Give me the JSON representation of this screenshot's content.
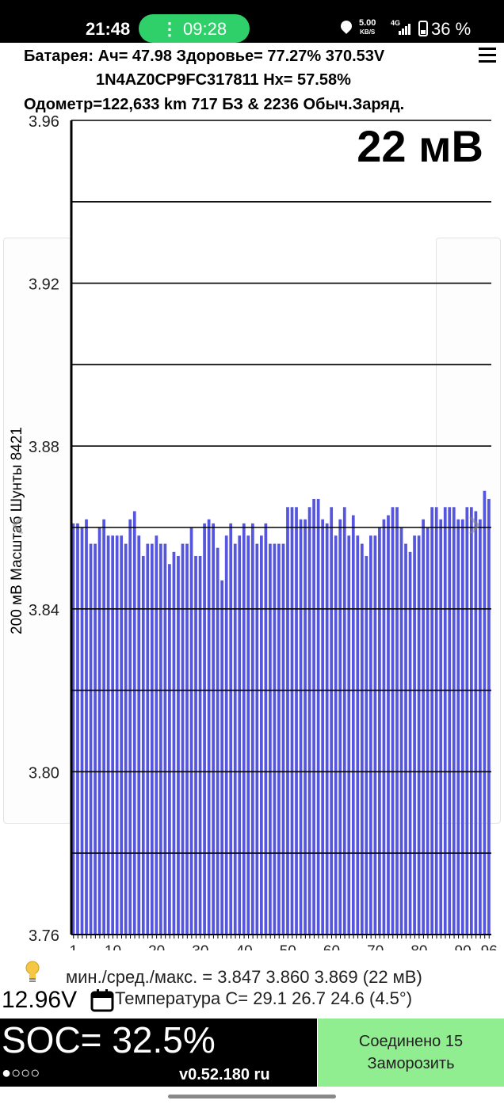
{
  "status_bar": {
    "time": "21:48",
    "call_timer": "09:28",
    "call_dot": "⋮",
    "speed_value": "5.00",
    "speed_unit": "KB/S",
    "network": "4G",
    "battery": "36 %",
    "icons": [
      "location-icon",
      "signal-icon",
      "battery-icon"
    ]
  },
  "header": {
    "line1": "Батарея: Ач= 47.98 Здоровье= 77.27% 370.53V",
    "line2": "1N4AZ0CP9FC317811   Нх= 57.58%",
    "line3": "Одометр=122,633 km 717 БЗ & 2236 Обыч.Заряд.",
    "menu_icon": "hamburger-menu-icon"
  },
  "spread_label": "22 мВ",
  "y_axis_label": "200 мВ Масштаб  Шунты 8421",
  "chart_data": {
    "type": "bar",
    "title": "",
    "xlabel": "",
    "ylabel": "200 мВ Масштаб  Шунты 8421",
    "ylim": [
      3.76,
      3.96
    ],
    "y_ticks": [
      "3.76",
      "3.80",
      "3.84",
      "3.88",
      "3.92",
      "3.96"
    ],
    "x_ticks": [
      "1",
      "10",
      "20",
      "30",
      "40",
      "50",
      "60",
      "70",
      "80",
      "90",
      "96"
    ],
    "grid": "horizontal every 0.02",
    "bar_color": "#5555dd",
    "categories": [
      1,
      2,
      3,
      4,
      5,
      6,
      7,
      8,
      9,
      10,
      11,
      12,
      13,
      14,
      15,
      16,
      17,
      18,
      19,
      20,
      21,
      22,
      23,
      24,
      25,
      26,
      27,
      28,
      29,
      30,
      31,
      32,
      33,
      34,
      35,
      36,
      37,
      38,
      39,
      40,
      41,
      42,
      43,
      44,
      45,
      46,
      47,
      48,
      49,
      50,
      51,
      52,
      53,
      54,
      55,
      56,
      57,
      58,
      59,
      60,
      61,
      62,
      63,
      64,
      65,
      66,
      67,
      68,
      69,
      70,
      71,
      72,
      73,
      74,
      75,
      76,
      77,
      78,
      79,
      80,
      81,
      82,
      83,
      84,
      85,
      86,
      87,
      88,
      89,
      90,
      91,
      92,
      93,
      94,
      95,
      96
    ],
    "values": [
      3.861,
      3.861,
      3.86,
      3.862,
      3.856,
      3.856,
      3.86,
      3.862,
      3.858,
      3.858,
      3.858,
      3.858,
      3.856,
      3.862,
      3.864,
      3.858,
      3.853,
      3.856,
      3.856,
      3.858,
      3.856,
      3.856,
      3.851,
      3.854,
      3.853,
      3.856,
      3.856,
      3.86,
      3.853,
      3.853,
      3.861,
      3.862,
      3.861,
      3.855,
      3.847,
      3.858,
      3.861,
      3.856,
      3.858,
      3.861,
      3.858,
      3.861,
      3.856,
      3.858,
      3.861,
      3.856,
      3.856,
      3.856,
      3.856,
      3.865,
      3.865,
      3.865,
      3.862,
      3.862,
      3.865,
      3.867,
      3.867,
      3.862,
      3.861,
      3.865,
      3.858,
      3.862,
      3.865,
      3.858,
      3.863,
      3.858,
      3.856,
      3.853,
      3.858,
      3.858,
      3.86,
      3.862,
      3.863,
      3.865,
      3.865,
      3.86,
      3.856,
      3.854,
      3.858,
      3.858,
      3.862,
      3.86,
      3.865,
      3.865,
      3.862,
      3.865,
      3.865,
      3.865,
      3.862,
      3.862,
      3.865,
      3.865,
      3.864,
      3.862,
      3.869,
      3.867
    ]
  },
  "stats": {
    "min_avg_max": "мин./сред./макс. = 3.847 3.860 3.869  (22 мВ)",
    "voltage": "12.96V",
    "temperature": "Температура С= 29.1  26.7  24.6  (4.5°)"
  },
  "bottom": {
    "soc": "SOC= 32.5%",
    "dots": "●○○○",
    "version": "v0.52.180 ru",
    "connect_line1": "Соединено 15",
    "connect_line2": "Заморозить",
    "connect_color": "#90ee90"
  }
}
